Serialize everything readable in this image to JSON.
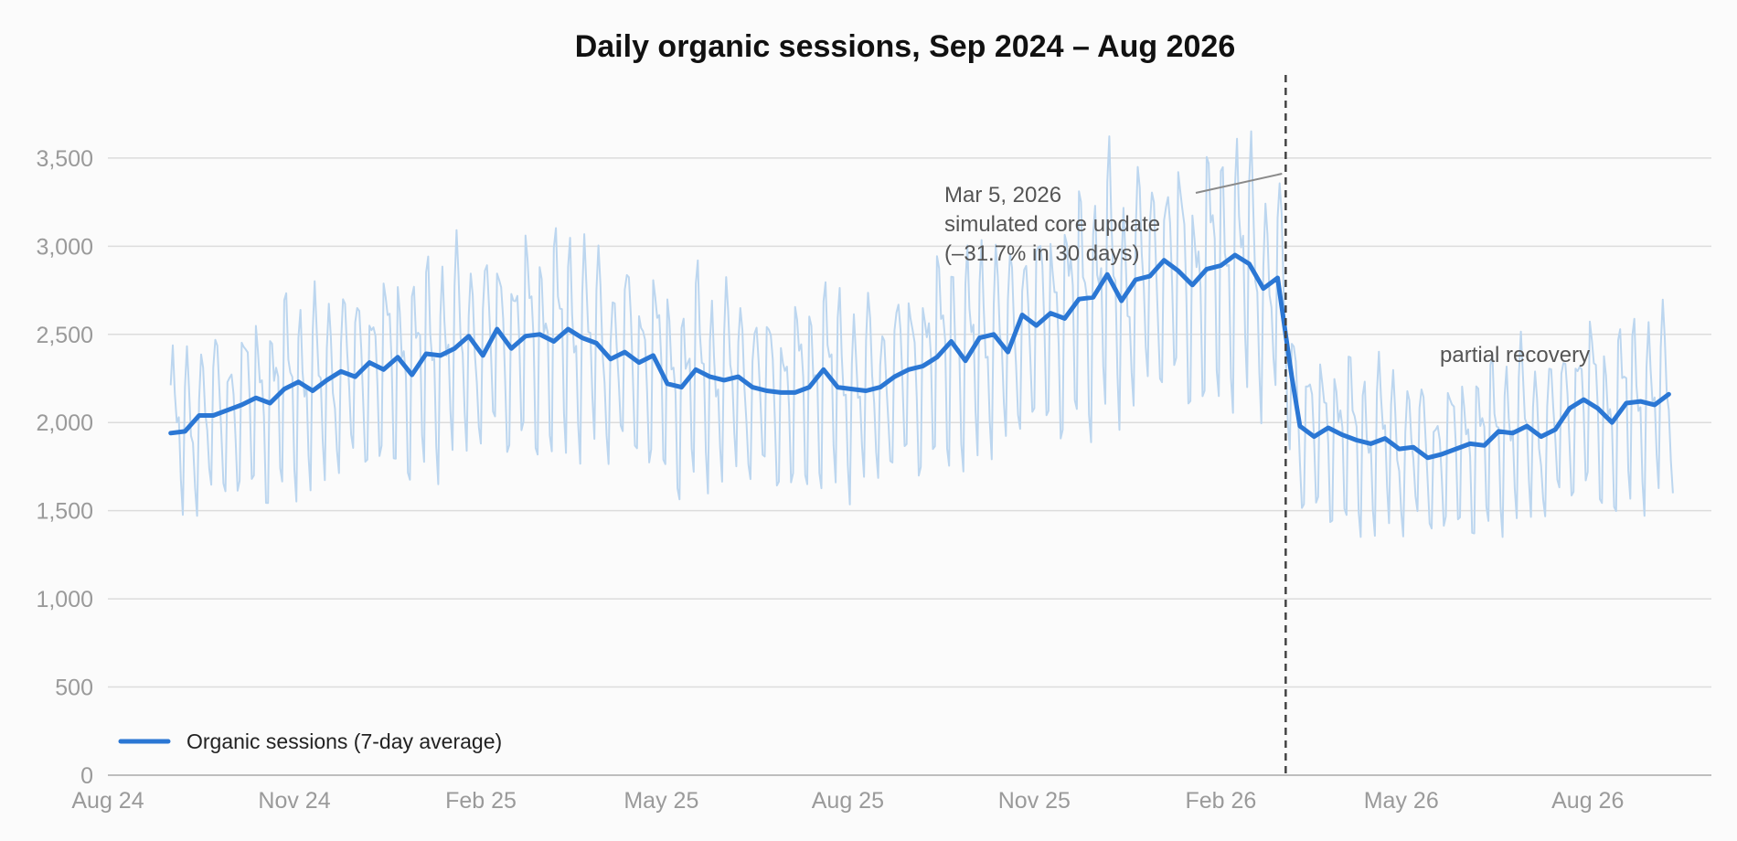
{
  "chart_data": {
    "type": "line",
    "title": "Daily organic sessions, Sep 2024 – Aug 2026",
    "xlabel": "",
    "ylabel": "",
    "x_range": [
      "2024-08-01",
      "2026-10-01"
    ],
    "ylim": [
      0,
      3800
    ],
    "y_ticks": [
      0,
      500,
      1000,
      1500,
      2000,
      2500,
      3000,
      3500
    ],
    "y_tick_labels": [
      "0",
      "500",
      "1,000",
      "1,500",
      "2,000",
      "2,500",
      "3,000",
      "3,500"
    ],
    "x_ticks": [
      {
        "date": "2024-08-01",
        "label": "Aug 24"
      },
      {
        "date": "2024-11-01",
        "label": "Nov 24"
      },
      {
        "date": "2025-02-01",
        "label": "Feb 25"
      },
      {
        "date": "2025-05-01",
        "label": "May 25"
      },
      {
        "date": "2025-08-01",
        "label": "Aug 25"
      },
      {
        "date": "2025-11-01",
        "label": "Nov 25"
      },
      {
        "date": "2026-02-01",
        "label": "Feb 26"
      },
      {
        "date": "2026-05-01",
        "label": "May 26"
      },
      {
        "date": "2026-08-01",
        "label": "Aug 26"
      }
    ],
    "grid": true,
    "legend_position": "bottom-left",
    "series": [
      {
        "name": "Organic sessions (7-day average)",
        "color": "#2b77d4",
        "points": [
          [
            "2024-09-01",
            1940
          ],
          [
            "2024-09-08",
            1950
          ],
          [
            "2024-09-15",
            2040
          ],
          [
            "2024-09-22",
            2040
          ],
          [
            "2024-09-29",
            2070
          ],
          [
            "2024-10-06",
            2100
          ],
          [
            "2024-10-13",
            2140
          ],
          [
            "2024-10-20",
            2110
          ],
          [
            "2024-10-27",
            2190
          ],
          [
            "2024-11-03",
            2230
          ],
          [
            "2024-11-10",
            2180
          ],
          [
            "2024-11-17",
            2240
          ],
          [
            "2024-11-24",
            2290
          ],
          [
            "2024-12-01",
            2260
          ],
          [
            "2024-12-08",
            2340
          ],
          [
            "2024-12-15",
            2300
          ],
          [
            "2024-12-22",
            2370
          ],
          [
            "2024-12-29",
            2270
          ],
          [
            "2025-01-05",
            2390
          ],
          [
            "2025-01-12",
            2380
          ],
          [
            "2025-01-19",
            2420
          ],
          [
            "2025-01-26",
            2490
          ],
          [
            "2025-02-02",
            2380
          ],
          [
            "2025-02-09",
            2530
          ],
          [
            "2025-02-16",
            2420
          ],
          [
            "2025-02-23",
            2490
          ],
          [
            "2025-03-02",
            2500
          ],
          [
            "2025-03-09",
            2460
          ],
          [
            "2025-03-16",
            2530
          ],
          [
            "2025-03-23",
            2480
          ],
          [
            "2025-03-30",
            2450
          ],
          [
            "2025-04-06",
            2360
          ],
          [
            "2025-04-13",
            2400
          ],
          [
            "2025-04-20",
            2340
          ],
          [
            "2025-04-27",
            2380
          ],
          [
            "2025-05-04",
            2220
          ],
          [
            "2025-05-11",
            2200
          ],
          [
            "2025-05-18",
            2300
          ],
          [
            "2025-05-25",
            2260
          ],
          [
            "2025-06-01",
            2240
          ],
          [
            "2025-06-08",
            2260
          ],
          [
            "2025-06-15",
            2200
          ],
          [
            "2025-06-22",
            2180
          ],
          [
            "2025-06-29",
            2170
          ],
          [
            "2025-07-06",
            2170
          ],
          [
            "2025-07-13",
            2200
          ],
          [
            "2025-07-20",
            2300
          ],
          [
            "2025-07-27",
            2200
          ],
          [
            "2025-08-03",
            2190
          ],
          [
            "2025-08-10",
            2180
          ],
          [
            "2025-08-17",
            2200
          ],
          [
            "2025-08-24",
            2260
          ],
          [
            "2025-08-31",
            2300
          ],
          [
            "2025-09-07",
            2320
          ],
          [
            "2025-09-14",
            2370
          ],
          [
            "2025-09-21",
            2460
          ],
          [
            "2025-09-28",
            2350
          ],
          [
            "2025-10-05",
            2480
          ],
          [
            "2025-10-12",
            2500
          ],
          [
            "2025-10-19",
            2400
          ],
          [
            "2025-10-26",
            2610
          ],
          [
            "2025-11-02",
            2550
          ],
          [
            "2025-11-09",
            2620
          ],
          [
            "2025-11-16",
            2590
          ],
          [
            "2025-11-23",
            2700
          ],
          [
            "2025-11-30",
            2710
          ],
          [
            "2025-12-07",
            2840
          ],
          [
            "2025-12-14",
            2690
          ],
          [
            "2025-12-21",
            2810
          ],
          [
            "2025-12-28",
            2830
          ],
          [
            "2026-01-04",
            2920
          ],
          [
            "2026-01-11",
            2860
          ],
          [
            "2026-01-18",
            2780
          ],
          [
            "2026-01-25",
            2870
          ],
          [
            "2026-02-01",
            2890
          ],
          [
            "2026-02-08",
            2950
          ],
          [
            "2026-02-15",
            2900
          ],
          [
            "2026-02-22",
            2760
          ],
          [
            "2026-03-01",
            2820
          ],
          [
            "2026-03-05",
            2500
          ],
          [
            "2026-03-08",
            2260
          ],
          [
            "2026-03-12",
            1980
          ],
          [
            "2026-03-19",
            1920
          ],
          [
            "2026-03-26",
            1970
          ],
          [
            "2026-04-02",
            1930
          ],
          [
            "2026-04-09",
            1900
          ],
          [
            "2026-04-16",
            1880
          ],
          [
            "2026-04-23",
            1910
          ],
          [
            "2026-04-30",
            1850
          ],
          [
            "2026-05-07",
            1860
          ],
          [
            "2026-05-14",
            1800
          ],
          [
            "2026-05-21",
            1820
          ],
          [
            "2026-05-28",
            1850
          ],
          [
            "2026-06-04",
            1880
          ],
          [
            "2026-06-11",
            1870
          ],
          [
            "2026-06-18",
            1950
          ],
          [
            "2026-06-25",
            1940
          ],
          [
            "2026-07-02",
            1980
          ],
          [
            "2026-07-09",
            1920
          ],
          [
            "2026-07-16",
            1960
          ],
          [
            "2026-07-23",
            2080
          ],
          [
            "2026-07-30",
            2130
          ],
          [
            "2026-08-06",
            2080
          ],
          [
            "2026-08-13",
            2000
          ],
          [
            "2026-08-20",
            2110
          ],
          [
            "2026-08-27",
            2120
          ],
          [
            "2026-09-03",
            2100
          ],
          [
            "2026-09-10",
            2160
          ]
        ]
      }
    ],
    "daily_band": {
      "color": "#bcd6ef",
      "start": "2024-09-01",
      "end": "2026-09-12",
      "weekly_pattern": [
        1.14,
        1.18,
        1.1,
        1.04,
        0.98,
        0.8,
        0.76
      ]
    },
    "event_line": {
      "date": "2026-03-05",
      "style": "dashed",
      "color": "#444444"
    },
    "annotations": [
      {
        "lines": [
          "Mar 5, 2026",
          "simulated core update",
          "(–31.7% in 30 days)"
        ],
        "near": "2025-10-20",
        "y": 3250
      },
      {
        "lines": [
          "partial recovery"
        ],
        "near": "2026-06-20",
        "y": 2320
      }
    ]
  }
}
